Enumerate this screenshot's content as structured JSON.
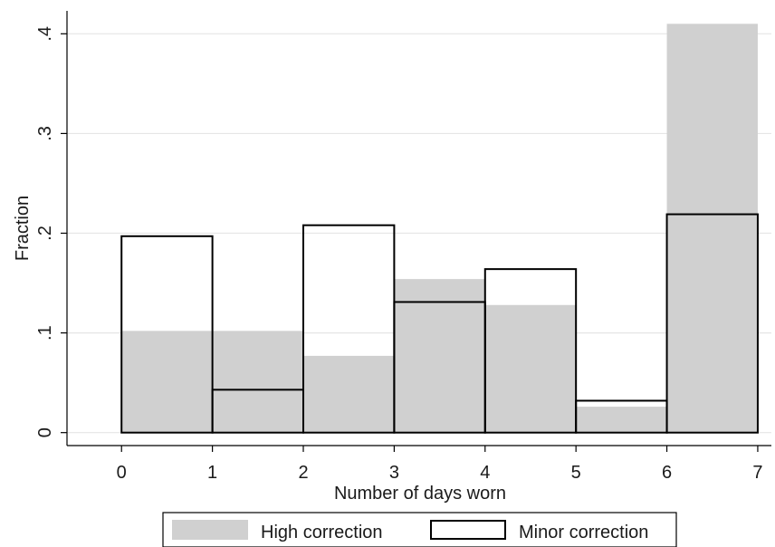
{
  "chart_data": {
    "type": "bar",
    "subtype": "overlaid histogram",
    "xlabel": "Number of days worn",
    "ylabel": "Fraction",
    "xlim": [
      -0.6,
      7.15
    ],
    "ylim": [
      -0.013,
      0.423
    ],
    "x_ticks": [
      {
        "value": 0,
        "label": "0"
      },
      {
        "value": 1,
        "label": "1"
      },
      {
        "value": 2,
        "label": "2"
      },
      {
        "value": 3,
        "label": "3"
      },
      {
        "value": 4,
        "label": "4"
      },
      {
        "value": 5,
        "label": "5"
      },
      {
        "value": 6,
        "label": "6"
      },
      {
        "value": 7,
        "label": "7"
      }
    ],
    "y_ticks": [
      {
        "value": 0,
        "label": "0"
      },
      {
        "value": 0.1,
        "label": ".1"
      },
      {
        "value": 0.2,
        "label": ".2"
      },
      {
        "value": 0.3,
        "label": ".3"
      },
      {
        "value": 0.4,
        "label": ".4"
      }
    ],
    "grid": true,
    "legend_position": "bottom",
    "bins": [
      [
        0,
        1
      ],
      [
        1,
        2
      ],
      [
        2,
        3
      ],
      [
        3,
        4
      ],
      [
        4,
        5
      ],
      [
        5,
        6
      ],
      [
        6,
        7
      ]
    ],
    "series": [
      {
        "name": "High correction",
        "style": "filled",
        "color": "#d0d0d0",
        "values": [
          0.102,
          0.102,
          0.077,
          0.154,
          0.128,
          0.026,
          0.41
        ]
      },
      {
        "name": "Minor correction",
        "style": "outline",
        "color": "#000000",
        "values": [
          0.197,
          0.043,
          0.208,
          0.131,
          0.164,
          0.032,
          0.219
        ]
      }
    ]
  }
}
